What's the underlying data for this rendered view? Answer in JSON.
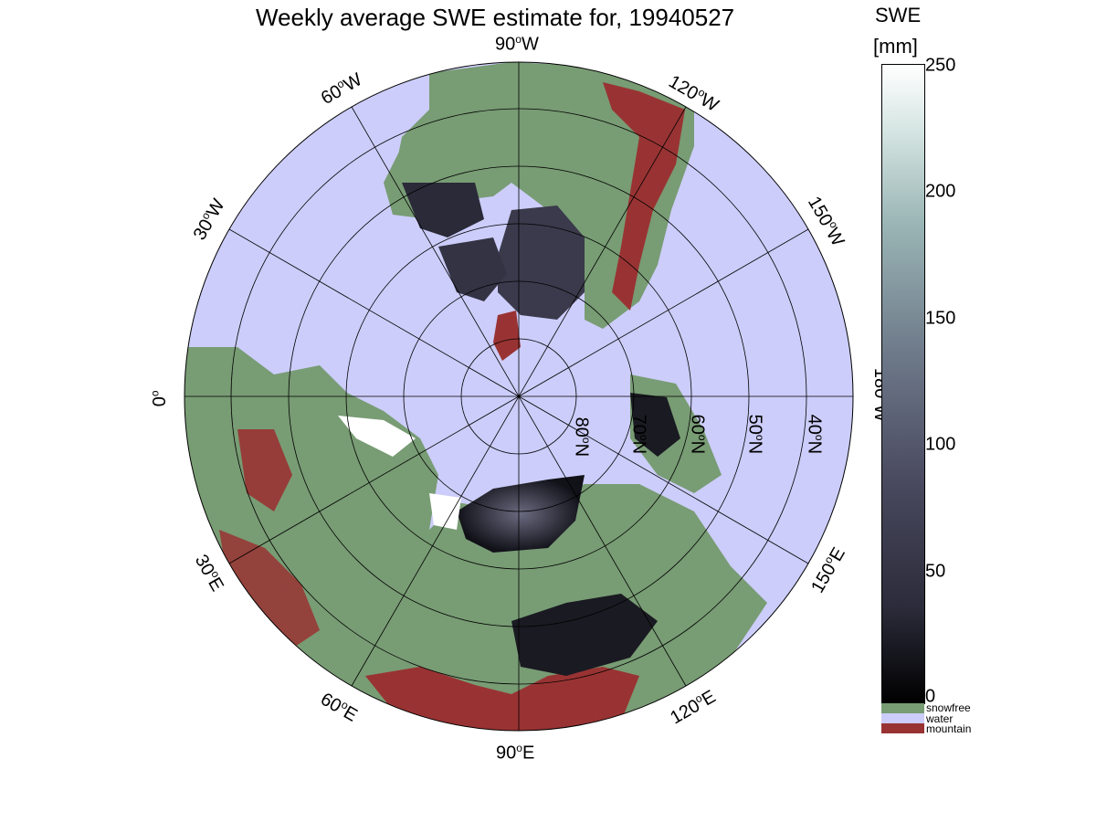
{
  "title": "Weekly average SWE estimate for, 19940527",
  "colorbar": {
    "unit_line1": "SWE",
    "unit_line2": "[mm]",
    "ticks": [
      "250",
      "200",
      "150",
      "100",
      "50",
      "0"
    ],
    "range": [
      0,
      250
    ]
  },
  "legend": [
    {
      "label": "snowfree",
      "color": "#789c74"
    },
    {
      "label": "water",
      "color": "#cccdfa"
    },
    {
      "label": "mountain",
      "color": "#993333"
    }
  ],
  "longitude_labels": {
    "w90": "90",
    "w60": "60",
    "w120": "120",
    "w30": "30",
    "w150": "150",
    "zero": "0",
    "w180": "180",
    "e30": "30",
    "e150": "150",
    "e60": "60",
    "e120": "120",
    "e90": "90",
    "suffix_w": "W",
    "suffix_e": "E",
    "deg": "o"
  },
  "latitude_labels": {
    "n80": "80",
    "n70": "70",
    "n60": "60",
    "n50": "50",
    "n40": "40",
    "suffix_n": "N",
    "deg": "o"
  },
  "colors": {
    "water": "#cccdfa",
    "land": "#789c74",
    "mountain": "#993333",
    "snow_dark": "#1a1a22",
    "snow_mid": "#4a4a60",
    "snow_light": "#ffffff"
  }
}
